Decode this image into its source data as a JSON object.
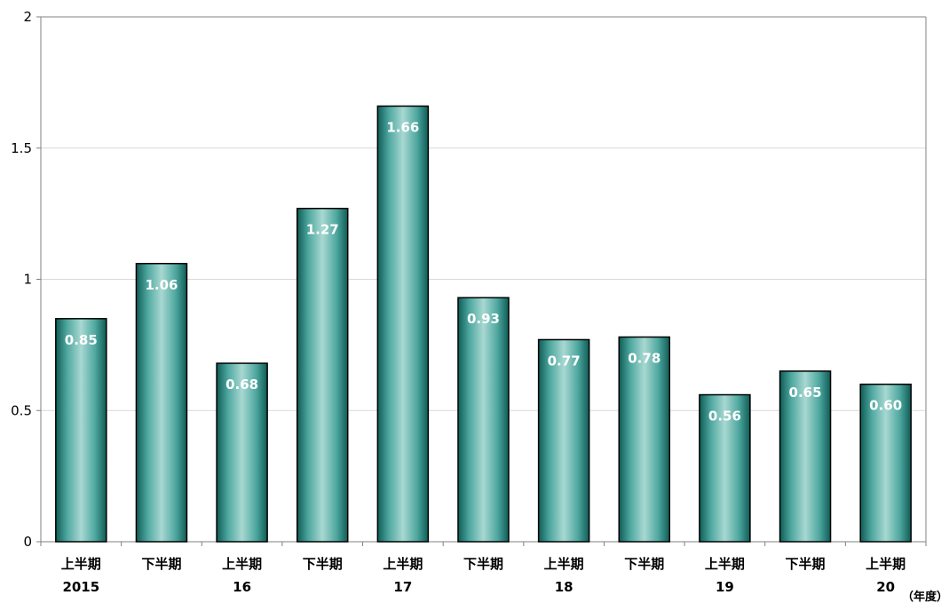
{
  "chart_data": {
    "type": "bar",
    "categories": [
      {
        "half": "上半期",
        "year": "2015"
      },
      {
        "half": "下半期",
        "year": ""
      },
      {
        "half": "上半期",
        "year": "16"
      },
      {
        "half": "下半期",
        "year": ""
      },
      {
        "half": "上半期",
        "year": "17"
      },
      {
        "half": "下半期",
        "year": ""
      },
      {
        "half": "上半期",
        "year": "18"
      },
      {
        "half": "下半期",
        "year": ""
      },
      {
        "half": "上半期",
        "year": "19"
      },
      {
        "half": "下半期",
        "year": ""
      },
      {
        "half": "上半期",
        "year": "20"
      }
    ],
    "values": [
      0.85,
      1.06,
      0.68,
      1.27,
      1.66,
      0.93,
      0.77,
      0.78,
      0.56,
      0.65,
      0.6
    ],
    "value_labels": [
      "0.85",
      "1.06",
      "0.68",
      "1.27",
      "1.66",
      "0.93",
      "0.77",
      "0.78",
      "0.56",
      "0.65",
      "0.60"
    ],
    "ylim": [
      0,
      2
    ],
    "yticks": [
      0,
      0.5,
      1,
      1.5,
      2
    ],
    "ytick_labels": [
      "0",
      "0.5",
      "1",
      "1.5",
      "2"
    ],
    "xunit": "（年度）",
    "grid": true,
    "colors": {
      "bar_edge": "#0f5c55",
      "bar_center": "#a8d8d2",
      "bar_mid": "#4da79f",
      "bar_outline": "#000000",
      "grid": "#d9d9d9",
      "axis": "#808080"
    }
  }
}
